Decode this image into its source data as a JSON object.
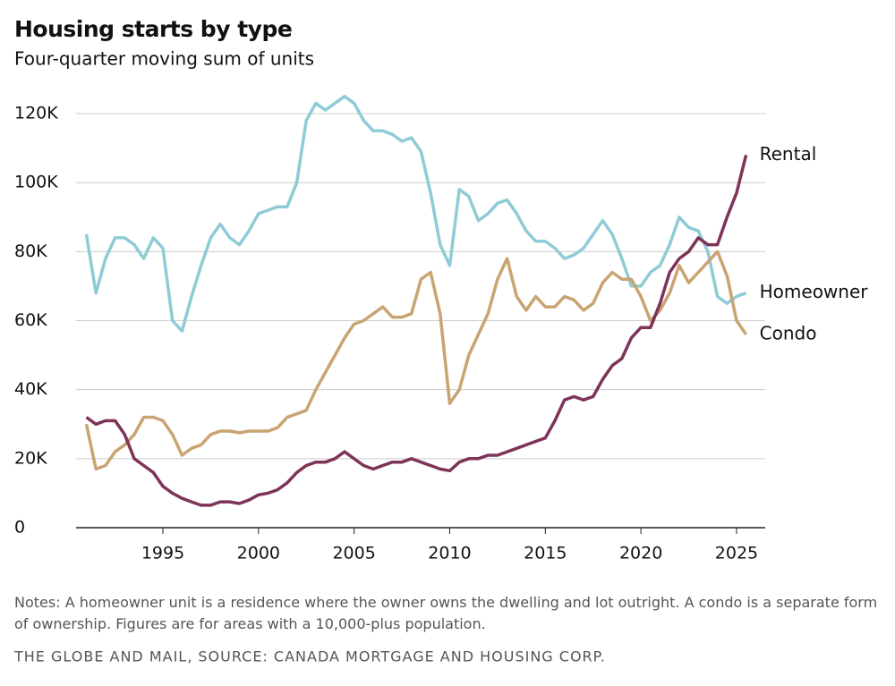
{
  "chart_data": {
    "type": "line",
    "title": "Housing starts by type",
    "subtitle": "Four-quarter moving sum of units",
    "notes": "Notes: A homeowner unit is a residence where the owner owns the dwelling and lot outright. A condo is a separate form of ownership. Figures are for areas with a 10,000-plus population.",
    "source": "THE GLOBE AND MAIL, SOURCE: CANADA MORTGAGE AND HOUSING CORP.",
    "x": [
      1991,
      1991.5,
      1992,
      1992.5,
      1993,
      1993.5,
      1994,
      1994.5,
      1995,
      1995.5,
      1996,
      1996.5,
      1997,
      1997.5,
      1998,
      1998.5,
      1999,
      1999.5,
      2000,
      2000.5,
      2001,
      2001.5,
      2002,
      2002.5,
      2003,
      2003.5,
      2004,
      2004.5,
      2005,
      2005.5,
      2006,
      2006.5,
      2007,
      2007.5,
      2008,
      2008.5,
      2009,
      2009.5,
      2010,
      2010.5,
      2011,
      2011.5,
      2012,
      2012.5,
      2013,
      2013.5,
      2014,
      2014.5,
      2015,
      2015.5,
      2016,
      2016.5,
      2017,
      2017.5,
      2018,
      2018.5,
      2019,
      2019.5,
      2020,
      2020.5,
      2021,
      2021.5,
      2022,
      2022.5,
      2023,
      2023.5,
      2024,
      2024.5,
      2025,
      2025.5
    ],
    "series": [
      {
        "name": "Homeowner",
        "color": "#8fcbd6",
        "values": [
          85,
          68,
          78,
          84,
          84,
          82,
          78,
          84,
          81,
          60,
          57,
          67,
          76,
          84,
          88,
          84,
          82,
          86,
          91,
          92,
          93,
          93,
          100,
          118,
          123,
          121,
          123,
          125,
          123,
          118,
          115,
          115,
          114,
          112,
          113,
          109,
          97,
          82,
          76,
          98,
          96,
          89,
          91,
          94,
          95,
          91,
          86,
          83,
          83,
          81,
          78,
          79,
          81,
          85,
          89,
          85,
          78,
          70,
          70,
          74,
          76,
          82,
          90,
          87,
          86,
          80,
          67,
          65,
          67,
          68
        ]
      },
      {
        "name": "Condo",
        "color": "#c9a472",
        "values": [
          30,
          17,
          18,
          22,
          24,
          27,
          32,
          32,
          31,
          27,
          21,
          23,
          24,
          27,
          28,
          28,
          27.5,
          28,
          28,
          28,
          29,
          32,
          33,
          34,
          40,
          45,
          50,
          55,
          59,
          60,
          62,
          64,
          61,
          61,
          62,
          72,
          74,
          62,
          36,
          40,
          50,
          56,
          62,
          72,
          78,
          67,
          63,
          67,
          64,
          64,
          67,
          66,
          63,
          65,
          71,
          74,
          72,
          72,
          67,
          60,
          63,
          68,
          76,
          71,
          74,
          77,
          80,
          73,
          60,
          56
        ]
      },
      {
        "name": "Rental",
        "color": "#7e3358",
        "values": [
          32,
          30,
          31,
          31,
          27,
          20,
          18,
          16,
          12,
          10,
          8.5,
          7.5,
          6.5,
          6.5,
          7.5,
          7.5,
          7,
          8,
          9.5,
          10,
          11,
          13,
          16,
          18,
          19,
          19,
          20,
          22,
          20,
          18,
          17,
          18,
          19,
          19,
          20,
          19,
          18,
          17,
          16.5,
          19,
          20,
          20,
          21,
          21,
          22,
          23,
          24,
          25,
          26,
          31,
          37,
          38,
          37,
          38,
          43,
          47,
          49,
          55,
          58,
          58,
          65,
          74,
          78,
          80,
          84,
          82,
          82,
          90,
          97,
          108
        ]
      }
    ],
    "xlim": [
      1990.46,
      2026.5
    ],
    "xticks": [
      1995,
      2000,
      2005,
      2010,
      2015,
      2020,
      2025
    ],
    "ylim": [
      0,
      120
    ],
    "yticks": [
      0,
      {
        "value": 20,
        "label": "20K"
      },
      {
        "value": 40,
        "label": "40K"
      },
      {
        "value": 60,
        "label": "60K"
      },
      {
        "value": 80,
        "label": "80K"
      },
      {
        "value": 100,
        "label": "100K"
      },
      {
        "value": 120,
        "label": "120K"
      }
    ],
    "grid": true
  }
}
